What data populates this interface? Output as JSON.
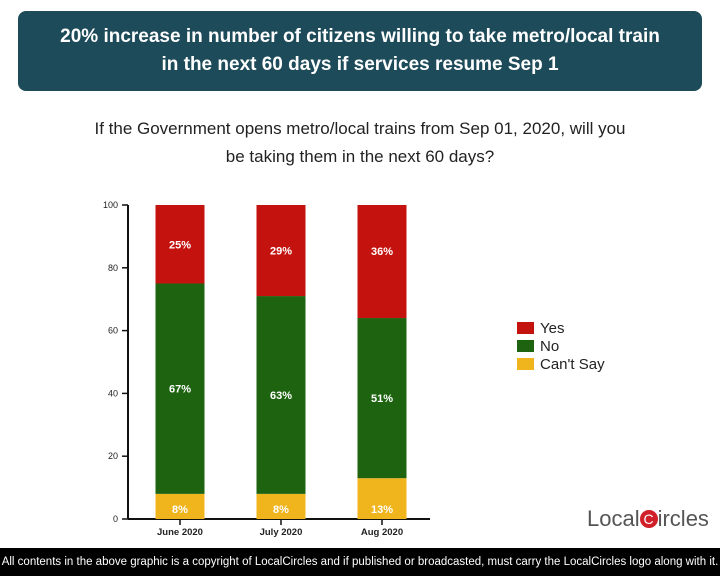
{
  "header": {
    "line1": "20% increase in number of citizens willing to take metro/local train",
    "line2": "in the next 60 days if services resume Sep 1"
  },
  "question": {
    "line1": "If the Government opens metro/local trains from Sep 01, 2020, will you",
    "line2": "be taking them in the next 60 days?"
  },
  "chart_data": {
    "type": "bar",
    "stacked": true,
    "categories": [
      "June 2020",
      "July 2020",
      "Aug 2020"
    ],
    "series": [
      {
        "name": "Can't Say",
        "color": "#f0b51c",
        "values": [
          8,
          8,
          13
        ]
      },
      {
        "name": "No",
        "color": "#1e6410",
        "values": [
          67,
          63,
          51
        ]
      },
      {
        "name": "Yes",
        "color": "#c4130f",
        "values": [
          25,
          29,
          36
        ]
      }
    ],
    "ylim": [
      0,
      100
    ],
    "yticks": [
      0,
      20,
      40,
      60,
      80,
      100
    ],
    "legend_position": "right"
  },
  "legend": [
    {
      "label": "Yes",
      "color": "#c4130f"
    },
    {
      "label": "No",
      "color": "#1e6410"
    },
    {
      "label": "Can't Say",
      "color": "#f0b51c"
    }
  ],
  "logo": {
    "pre": "Local",
    "c": "C",
    "post": "ircles"
  },
  "footer": "All contents in the above graphic is a copyright of LocalCircles and if published or broadcasted, must carry the LocalCircles logo along with it."
}
